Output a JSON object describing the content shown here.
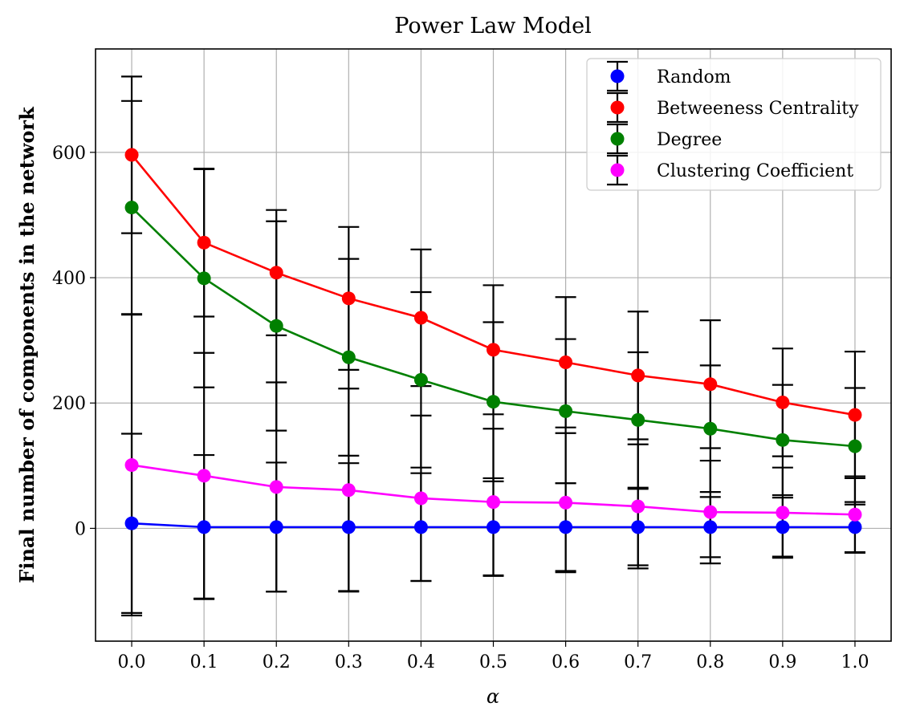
{
  "chart_data": {
    "type": "line",
    "title": "Power Law Model",
    "xlabel": "α",
    "ylabel": "Final number of components in the network",
    "x": [
      0.0,
      0.1,
      0.2,
      0.3,
      0.4,
      0.5,
      0.6,
      0.7,
      0.8,
      0.9,
      1.0
    ],
    "x_tick_labels": [
      "0.0",
      "0.1",
      "0.2",
      "0.3",
      "0.4",
      "0.5",
      "0.6",
      "0.7",
      "0.8",
      "0.9",
      "1.0"
    ],
    "y_ticks": [
      0,
      200,
      400,
      600
    ],
    "y_tick_labels": [
      "0",
      "200",
      "400",
      "600"
    ],
    "xlim": [
      -0.05,
      1.05
    ],
    "ylim": [
      -180,
      765
    ],
    "grid": true,
    "legend_position": "top-right",
    "series": [
      {
        "name": "Random",
        "color": "#0000ff",
        "values": [
          8,
          2,
          2,
          2,
          2,
          2,
          2,
          2,
          2,
          2,
          2
        ],
        "errors": [
          143,
          115,
          103,
          102,
          86,
          78,
          70,
          61,
          48,
          47,
          40
        ]
      },
      {
        "name": "Betweeness Centrality",
        "color": "#ff0000",
        "values": [
          596,
          456,
          408,
          367,
          336,
          285,
          265,
          244,
          230,
          201,
          181
        ],
        "errors": [
          125,
          118,
          100,
          114,
          109,
          103,
          104,
          102,
          102,
          86,
          101
        ]
      },
      {
        "name": "Degree",
        "color": "#008000",
        "values": [
          512,
          399,
          323,
          273,
          237,
          202,
          187,
          173,
          159,
          141,
          131
        ],
        "errors": [
          170,
          174,
          167,
          157,
          140,
          127,
          115,
          108,
          101,
          88,
          93
        ]
      },
      {
        "name": "Clustering Coefficient",
        "color": "#ff00ff",
        "values": [
          101,
          84,
          66,
          61,
          48,
          42,
          41,
          35,
          26,
          25,
          22
        ],
        "errors": [
          240,
          196,
          167,
          162,
          132,
          117,
          111,
          99,
          82,
          72,
          61
        ]
      }
    ]
  }
}
